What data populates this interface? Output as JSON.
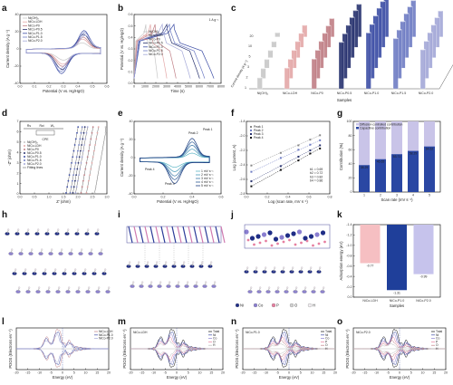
{
  "panel_letters": [
    "a",
    "b",
    "c",
    "d",
    "e",
    "f",
    "g",
    "h",
    "i",
    "j",
    "k",
    "l",
    "m",
    "n",
    "o"
  ],
  "legend_samples": [
    "Ni(OH)₂",
    "NiCo-LDH",
    "NiCo-P0",
    "NiCo-P0.5",
    "NiCo-P1.0",
    "NiCo-P1.5",
    "NiCo-P2.0"
  ],
  "colors": {
    "NiOH2": "#c8c8c8",
    "NiCoLDH": "#e4a8a8",
    "P0": "#c07f86",
    "P05": "#28326f",
    "P10": "#3e4fa6",
    "P15": "#6f7dc4",
    "P20": "#a4a8d8",
    "capacitive": "#2a47a3",
    "diffusion": "#c9c4e8",
    "bar_low": "#f6bfc2",
    "bar_mid": "#1f3f9a",
    "bar_high": "#c6c3ec"
  },
  "chart_data": [
    {
      "panel": "a",
      "type": "line",
      "xlabel": "Potential (V vs. Hg/HgO)",
      "ylabel": "Current density (A g⁻¹)",
      "xticks": [
        "0.0",
        "0.1",
        "0.2",
        "0.3",
        "0.4",
        "0.5",
        "0.6"
      ],
      "yticks": [
        "-40",
        "-20",
        "0",
        "20",
        "40"
      ],
      "xlim": [
        -0.05,
        0.65
      ],
      "ylim": [
        -45,
        50
      ],
      "series": [
        {
          "name": "Ni(OH)₂",
          "scale": 0.35
        },
        {
          "name": "NiCo-LDH",
          "scale": 0.55
        },
        {
          "name": "NiCo-P0",
          "scale": 0.65
        },
        {
          "name": "NiCo-P0.5",
          "scale": 0.8
        },
        {
          "name": "NiCo-P1.0",
          "scale": 1.0
        },
        {
          "name": "NiCo-P1.5",
          "scale": 0.9
        },
        {
          "name": "NiCo-P2.0",
          "scale": 0.75
        }
      ]
    },
    {
      "panel": "b",
      "type": "line",
      "xlabel": "Time (s)",
      "ylabel": "Potential (V vs. Hg/HgO)",
      "xticks": [
        "0",
        "1000",
        "2000",
        "3000",
        "4000",
        "5000",
        "6000",
        "7000",
        "8000"
      ],
      "yticks": [
        "0.0",
        "0.1",
        "0.2",
        "0.3",
        "0.4",
        "0.5",
        "0.6"
      ],
      "xlim": [
        0,
        8500
      ],
      "ylim": [
        -0.05,
        0.65
      ],
      "note": "1 A g⁻¹",
      "series": [
        {
          "name": "Ni(OH)₂",
          "end": 2300
        },
        {
          "name": "NiCo-LDH",
          "end": 3200
        },
        {
          "name": "NiCo-P0",
          "end": 4100
        },
        {
          "name": "NiCo-P0.5",
          "end": 6400
        },
        {
          "name": "NiCo-P1.0",
          "end": 7800
        },
        {
          "name": "NiCo-P1.5",
          "end": 6900
        },
        {
          "name": "NiCo-P2.0",
          "end": 5500
        }
      ]
    },
    {
      "panel": "c",
      "type": "bar3d",
      "xlabel": "Samples",
      "ylabel": "Specific capacity (C g⁻¹)",
      "zlabel": "Current density (A g⁻¹)",
      "categories": [
        "Ni(OH)₂",
        "NiCo-LDH",
        "NiCo-P0",
        "NiCo-P0.5",
        "NiCo-P1.0",
        "NiCo-P1.5",
        "NiCo-P2.0"
      ],
      "current_densities": [
        1,
        2,
        3,
        5,
        10,
        20
      ],
      "yticks": [
        "300",
        "600",
        "900",
        "1200",
        "1500"
      ],
      "values": [
        [
          300,
          270,
          240,
          200,
          160,
          120
        ],
        [
          560,
          520,
          480,
          440,
          380,
          320
        ],
        [
          800,
          760,
          720,
          660,
          580,
          500
        ],
        [
          1250,
          1200,
          1150,
          1080,
          990,
          880
        ],
        [
          1500,
          1450,
          1400,
          1330,
          1230,
          1120
        ],
        [
          1350,
          1300,
          1250,
          1180,
          1090,
          980
        ],
        [
          1050,
          1000,
          950,
          880,
          800,
          700
        ]
      ]
    },
    {
      "panel": "d",
      "type": "scatter",
      "xlabel": "Z′ (ohm)",
      "ylabel": "-Z″ (ohm)",
      "xticks": [
        "0.0",
        "0.5",
        "1.0",
        "1.5",
        "2.0",
        "2.5",
        "3.0"
      ],
      "yticks": [
        "0",
        "1",
        "2",
        "3",
        "4",
        "5",
        "6",
        "7"
      ],
      "xlim": [
        0,
        3.2
      ],
      "ylim": [
        0,
        7.5
      ],
      "circuit": {
        "rs": "Rs",
        "rct": "Rct",
        "w": "W₀",
        "cpe": "CPE"
      },
      "series": [
        {
          "name": "Ni(OH)₂",
          "x0": 2.75
        },
        {
          "name": "NiCo-LDH",
          "x0": 2.45
        },
        {
          "name": "NiCo-P0",
          "x0": 2.25
        },
        {
          "name": "NiCo-P0.5",
          "x0": 1.95
        },
        {
          "name": "NiCo-P1.0",
          "x0": 1.7
        },
        {
          "name": "NiCo-P1.5",
          "x0": 1.85
        },
        {
          "name": "NiCo-P2.0",
          "x0": 2.05
        }
      ],
      "fit_label": "Fitting lines"
    },
    {
      "panel": "e",
      "type": "line",
      "xlabel": "Potential (V vs. Hg/HgO)",
      "ylabel": "Current density (A g⁻¹)",
      "xticks": [
        "0.0",
        "0.2",
        "0.4",
        "0.6"
      ],
      "yticks": [
        "-40",
        "-20",
        "0",
        "20",
        "40"
      ],
      "xlim": [
        -0.05,
        0.7
      ],
      "ylim": [
        -45,
        50
      ],
      "series": [
        {
          "name": "1 mV s⁻¹",
          "scale": 0.25
        },
        {
          "name": "2 mV s⁻¹",
          "scale": 0.45
        },
        {
          "name": "3 mV s⁻¹",
          "scale": 0.65
        },
        {
          "name": "4 mV s⁻¹",
          "scale": 0.82
        },
        {
          "name": "5 mV s⁻¹",
          "scale": 1.0
        }
      ],
      "peaks": [
        "Peak 1",
        "Peak 2",
        "Peak 3",
        "Peak 4"
      ]
    },
    {
      "panel": "f",
      "type": "scatter",
      "xlabel": "Log (scan rate, mV s⁻¹)",
      "ylabel": "Log (current, A)",
      "xticks": [
        "0.0",
        "0.2",
        "0.4",
        "0.6",
        "0.8"
      ],
      "yticks": [
        "-2.8",
        "-2.6",
        "-2.4",
        "-2.2",
        "-2.0",
        "-1.8"
      ],
      "xlim": [
        -0.05,
        0.8
      ],
      "ylim": [
        -2.9,
        -1.75
      ],
      "series": [
        {
          "name": "Peak 1",
          "b": 0.69,
          "x": [
            0.0,
            0.3,
            0.48,
            0.6,
            0.7
          ],
          "y": [
            -2.45,
            -2.25,
            -2.13,
            -2.04,
            -1.97
          ]
        },
        {
          "name": "Peak 2",
          "b": 0.72,
          "x": [
            0.0,
            0.3,
            0.48,
            0.6,
            0.7
          ],
          "y": [
            -2.55,
            -2.33,
            -2.2,
            -2.12,
            -2.05
          ]
        },
        {
          "name": "Peak 3",
          "b": 0.82,
          "x": [
            0.0,
            0.3,
            0.48,
            0.6,
            0.7
          ],
          "y": [
            -2.7,
            -2.46,
            -2.31,
            -2.21,
            -2.13
          ]
        },
        {
          "name": "Peak 4",
          "b": 0.86,
          "x": [
            0.0,
            0.3,
            0.48,
            0.6,
            0.7
          ],
          "y": [
            -2.78,
            -2.52,
            -2.37,
            -2.26,
            -2.18
          ]
        }
      ],
      "b_labels": [
        "b1 = 0.69",
        "b2 = 0.72",
        "b3 = 0.82",
        "b4 = 0.86"
      ]
    },
    {
      "panel": "g",
      "type": "bar",
      "xlabel": "Scan rate (mV s⁻¹)",
      "ylabel": "Contribution (%)",
      "categories": [
        "1",
        "2",
        "3",
        "4",
        "5"
      ],
      "yticks": [
        "0",
        "20",
        "40",
        "60",
        "80",
        "100"
      ],
      "ylim": [
        0,
        100
      ],
      "series": [
        {
          "name": "Capacitive contribution",
          "values": [
            38.29,
            46.65,
            53.71,
            58.29,
            64.62
          ]
        },
        {
          "name": "Diffusion-controlled contribution",
          "values": [
            61.71,
            53.35,
            46.29,
            41.71,
            35.38
          ]
        }
      ],
      "value_labels": [
        "38.29",
        "46.65",
        "53.71",
        "58.29",
        "64.62"
      ]
    },
    {
      "panel": "k",
      "type": "bar",
      "xlabel": "Samples",
      "ylabel": "Adsorption energy (eV)",
      "categories": [
        "NiCo-LDH",
        "NiCo-P1.0",
        "NiCo-P2.0"
      ],
      "values": [
        -0.77,
        -1.31,
        -0.99
      ],
      "value_labels": [
        "-0.77",
        "-1.31",
        "-0.99"
      ],
      "yticks": [
        "0.0",
        "-0.2",
        "-0.4",
        "-0.6",
        "-0.8",
        "-1.0",
        "-1.2",
        "-1.4"
      ],
      "ylim": [
        -1.45,
        0
      ]
    },
    {
      "panel": "l",
      "type": "line",
      "xlabel": "Energy (eV)",
      "ylabel": "PDOS (Electrons eV⁻¹)",
      "xticks": [
        "-20",
        "-15",
        "-10",
        "-5",
        "0",
        "5",
        "10",
        "15",
        "20"
      ],
      "xlim": [
        -20,
        20
      ],
      "series": [
        {
          "name": "NiCo-LDH"
        },
        {
          "name": "NiCo-P1.0"
        },
        {
          "name": "NiCo-P2.0"
        }
      ]
    },
    {
      "panel": "m",
      "type": "line",
      "xlabel": "Energy (eV)",
      "ylabel": "PDOS (Electrons eV⁻¹)",
      "title": "NiCo-LDH",
      "xticks": [
        "-20",
        "-15",
        "-10",
        "-5",
        "0",
        "5",
        "10",
        "15",
        "20"
      ],
      "xlim": [
        -20,
        20
      ],
      "series": [
        {
          "name": "Total"
        },
        {
          "name": "Ni"
        },
        {
          "name": "Co"
        },
        {
          "name": "O"
        },
        {
          "name": "H"
        }
      ]
    },
    {
      "panel": "n",
      "type": "line",
      "xlabel": "Energy (eV)",
      "ylabel": "PDOS (Electrons eV⁻¹)",
      "title": "NiCo-P1.0",
      "xticks": [
        "-20",
        "-15",
        "-10",
        "-5",
        "0",
        "5",
        "10",
        "15",
        "20"
      ],
      "xlim": [
        -20,
        20
      ],
      "series": [
        {
          "name": "Total"
        },
        {
          "name": "Ni"
        },
        {
          "name": "Co"
        },
        {
          "name": "P"
        },
        {
          "name": "O"
        },
        {
          "name": "H"
        }
      ]
    },
    {
      "panel": "o",
      "type": "line",
      "xlabel": "Energy (eV)",
      "ylabel": "PDOS (Electrons eV⁻¹)",
      "title": "NiCo-P2.0",
      "xticks": [
        "-20",
        "-15",
        "-10",
        "-5",
        "0",
        "5",
        "10",
        "15",
        "20"
      ],
      "xlim": [
        -20,
        20
      ],
      "series": [
        {
          "name": "Total"
        },
        {
          "name": "Ni"
        },
        {
          "name": "Co"
        },
        {
          "name": "P"
        },
        {
          "name": "O"
        },
        {
          "name": "H"
        }
      ]
    }
  ],
  "structure_legend": [
    {
      "label": "Ni",
      "color": "#1f2d86"
    },
    {
      "label": "Co",
      "color": "#8a7ed0"
    },
    {
      "label": "P",
      "color": "#e67fa0"
    },
    {
      "label": "O",
      "color": "#d0d0d0"
    },
    {
      "label": "H",
      "color": "#f2eef2"
    }
  ]
}
